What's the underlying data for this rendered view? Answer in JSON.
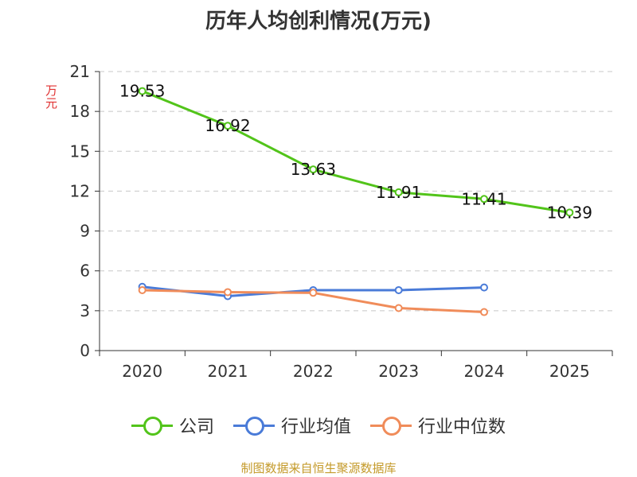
{
  "chart_data": {
    "type": "line",
    "title": "历年人均创利情况(万元)",
    "ylabel": "万元",
    "xlabel": "",
    "categories": [
      "2020",
      "2021",
      "2022",
      "2023",
      "2024",
      "2025"
    ],
    "yticks": [
      "0",
      "3",
      "6",
      "9",
      "12",
      "15",
      "18",
      "21"
    ],
    "ylim": [
      0,
      21
    ],
    "grid": "horizontal-dashed",
    "legend_position": "bottom",
    "series": [
      {
        "name": "公司",
        "color": "#52c41a",
        "values": [
          19.53,
          16.92,
          13.63,
          11.91,
          11.41,
          10.39
        ],
        "labels": [
          "19.53",
          "16.92",
          "13.63",
          "11.91",
          "11.41",
          "10.39"
        ]
      },
      {
        "name": "行业均值",
        "color": "#4a7bd8",
        "values": [
          4.8,
          4.1,
          4.55,
          4.55,
          4.75,
          null
        ]
      },
      {
        "name": "行业中位数",
        "color": "#f08c5a",
        "values": [
          4.55,
          4.4,
          4.35,
          3.2,
          2.9,
          null
        ]
      }
    ]
  },
  "source": "制图数据来自恒生聚源数据库"
}
